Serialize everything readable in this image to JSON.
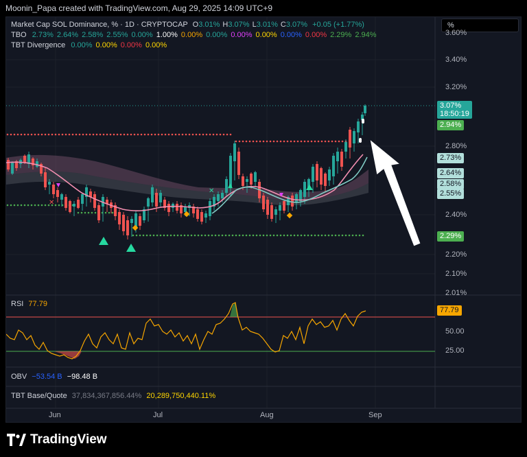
{
  "attribution": "Moonin_Papa created with TradingView.com, Aug 29, 2025 14:09 UTC+9",
  "legend": {
    "symbol": "Market Cap SOL Dominance, % · 1D · CRYPTOCAP",
    "ohlc": [
      {
        "k": "O",
        "v": "3.01%"
      },
      {
        "k": "H",
        "v": "3.07%"
      },
      {
        "k": "L",
        "v": "3.01%"
      },
      {
        "k": "C",
        "v": "3.07%"
      }
    ],
    "change": "+0.05 (+1.77%)",
    "tbo_label": "TBO",
    "tbo_values": [
      {
        "v": "2.73%",
        "c": "#26a69a"
      },
      {
        "v": "2.64%",
        "c": "#26a69a"
      },
      {
        "v": "2.58%",
        "c": "#26a69a"
      },
      {
        "v": "2.55%",
        "c": "#26a69a"
      },
      {
        "v": "0.00%",
        "c": "#26a69a"
      },
      {
        "v": "1.00%",
        "c": "#ffffff"
      },
      {
        "v": "0.00%",
        "c": "#f7a600"
      },
      {
        "v": "0.00%",
        "c": "#26a69a"
      },
      {
        "v": "0.00%",
        "c": "#e040fb"
      },
      {
        "v": "0.00%",
        "c": "#ffd600"
      },
      {
        "v": "0.00%",
        "c": "#2962ff"
      },
      {
        "v": "0.00%",
        "c": "#f23645"
      },
      {
        "v": "2.29%",
        "c": "#4caf50"
      },
      {
        "v": "2.94%",
        "c": "#4caf50"
      }
    ],
    "div_label": "TBT Divergence",
    "div_values": [
      {
        "v": "0.00%",
        "c": "#26a69a"
      },
      {
        "v": "0.00%",
        "c": "#ffd600"
      },
      {
        "v": "0.00%",
        "c": "#f23645"
      },
      {
        "v": "0.00%",
        "c": "#ffd600"
      }
    ]
  },
  "scale_mode": "%",
  "price_axis": [
    "3.60%",
    "3.40%",
    "3.20%",
    "2.80%",
    "2.40%",
    "2.20%",
    "2.10%",
    "2.01%"
  ],
  "price_tags": {
    "last": "3.07%",
    "countdown": "18:50:19",
    "tags": [
      {
        "v": "2.94%",
        "bg": "#4caf50",
        "fg": "#ffffff"
      },
      {
        "v": "2.73%",
        "bg": "#b2dfdb",
        "fg": "#131722"
      },
      {
        "v": "2.64%",
        "bg": "#b2dfdb",
        "fg": "#131722"
      },
      {
        "v": "2.58%",
        "bg": "#b2dfdb",
        "fg": "#131722"
      },
      {
        "v": "2.55%",
        "bg": "#b2dfdb",
        "fg": "#131722"
      },
      {
        "v": "2.29%",
        "bg": "#4caf50",
        "fg": "#ffffff"
      }
    ]
  },
  "rsi": {
    "label": "RSI",
    "value": "77.79",
    "levels": [
      "50.00",
      "25.00"
    ]
  },
  "obv": {
    "label": "OBV",
    "v1": "−53.54 B",
    "v2": "−98.48 B"
  },
  "tbt_bq": {
    "label": "TBT Base/Quote",
    "v1": "37,834,367,856.44%",
    "v2": "20,289,750,440.11%"
  },
  "time_axis": [
    "Jun",
    "Jul",
    "Aug",
    "Sep"
  ],
  "brand": "TradingView",
  "colors": {
    "up": "#26a69a",
    "down": "#ef5350",
    "rsi": "#f7a600",
    "bg": "#131722"
  }
}
